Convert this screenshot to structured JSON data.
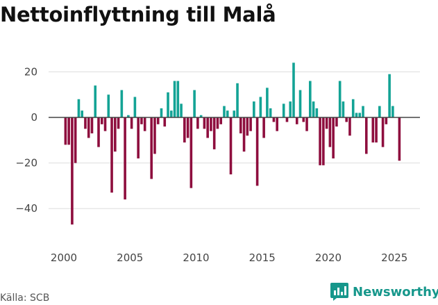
{
  "title": "Nettoinflyttning till Malå",
  "source": "Källa: SCB",
  "brand": {
    "name": "Newsworthy",
    "icon": "bar-chart-logo-icon"
  },
  "colors": {
    "positive": "#13a395",
    "negative": "#8e0e3e",
    "zero_line": "#444444",
    "grid": "#dddddd",
    "brand": "#16978b"
  },
  "chart_data": {
    "type": "bar",
    "title": "Nettoinflyttning till Malå",
    "xlabel": "",
    "ylabel": "",
    "ylim": [
      -55,
      32
    ],
    "yticks": [
      20,
      0,
      -20,
      -40
    ],
    "ytick_labels": [
      "20",
      "0",
      "−20",
      "−40"
    ],
    "xticks": [
      2000,
      2005,
      2010,
      2015,
      2020,
      2025
    ],
    "xtick_labels": [
      "2000",
      "2005",
      "2010",
      "2015",
      "2020",
      "2025"
    ],
    "grid": true,
    "frequency": "quarterly",
    "start_year": 2000,
    "values": [
      -12,
      -12,
      -47,
      -20,
      8,
      3,
      -5,
      -9,
      -7,
      14,
      -13,
      -3,
      -6,
      10,
      -33,
      -15,
      -5,
      12,
      -36,
      1,
      -5,
      9,
      -18,
      -3,
      -6,
      0,
      -27,
      -16,
      -3,
      4,
      -4,
      11,
      3,
      16,
      16,
      6,
      -11,
      -9,
      -31,
      12,
      -5,
      1,
      -5,
      -9,
      -6,
      -14,
      -5,
      -3,
      5,
      3,
      -25,
      3,
      15,
      -7,
      -15,
      -8,
      -6,
      7,
      -30,
      9,
      -9,
      13,
      4,
      -2,
      -6,
      0,
      6,
      -2,
      7,
      24,
      -3,
      12,
      -2,
      -6,
      16,
      7,
      4,
      -21,
      -21,
      -5,
      -13,
      -18,
      -4,
      16,
      7,
      -2,
      -8,
      8,
      2,
      2,
      5,
      -16,
      0,
      -11,
      -11,
      5,
      -13,
      -3,
      19,
      5,
      0,
      -19
    ]
  }
}
